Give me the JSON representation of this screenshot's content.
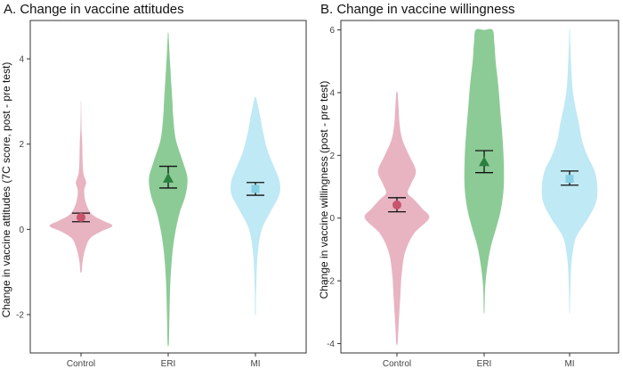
{
  "chart_data": [
    {
      "type": "violin",
      "title": "A. Change in vaccine attitudes",
      "xlabel": "",
      "ylabel": "Change in vaccine attitudes (7C score, post - pre test)",
      "ylim": [
        -2.9,
        4.9
      ],
      "yticks": [
        -2,
        0,
        2,
        4
      ],
      "grid": false,
      "legend": "none",
      "categories": [
        "Control",
        "ERI",
        "MI"
      ],
      "groups": [
        {
          "name": "Control",
          "color": "#e8b4c2",
          "marker": "circle",
          "marker_color": "#c8546e",
          "mean": 0.28,
          "ci": [
            0.18,
            0.38
          ],
          "range": [
            -1.0,
            3.0
          ],
          "density": [
            [
              -1.0,
              0.02
            ],
            [
              -0.7,
              0.06
            ],
            [
              -0.4,
              0.16
            ],
            [
              -0.2,
              0.3
            ],
            [
              -0.05,
              0.62
            ],
            [
              0.08,
              0.98
            ],
            [
              0.2,
              0.7
            ],
            [
              0.35,
              0.35
            ],
            [
              0.6,
              0.16
            ],
            [
              0.9,
              0.1
            ],
            [
              1.1,
              0.16
            ],
            [
              1.3,
              0.08
            ],
            [
              1.6,
              0.05
            ],
            [
              2.0,
              0.04
            ],
            [
              2.3,
              0.02
            ],
            [
              2.6,
              0.01
            ],
            [
              3.0,
              0.005
            ]
          ]
        },
        {
          "name": "ERI",
          "color": "#8ccb96",
          "marker": "triangle",
          "marker_color": "#2a8040",
          "mean": 1.2,
          "ci": [
            0.97,
            1.48
          ],
          "range": [
            -2.7,
            4.6
          ],
          "density": [
            [
              -2.7,
              0.02
            ],
            [
              -2.0,
              0.04
            ],
            [
              -1.2,
              0.07
            ],
            [
              -0.5,
              0.14
            ],
            [
              0.0,
              0.24
            ],
            [
              0.4,
              0.36
            ],
            [
              0.8,
              0.54
            ],
            [
              1.2,
              0.6
            ],
            [
              1.6,
              0.45
            ],
            [
              2.1,
              0.24
            ],
            [
              2.6,
              0.16
            ],
            [
              3.0,
              0.13
            ],
            [
              3.5,
              0.09
            ],
            [
              4.0,
              0.05
            ],
            [
              4.3,
              0.03
            ],
            [
              4.6,
              0.01
            ]
          ]
        },
        {
          "name": "MI",
          "color": "#bfe9f4",
          "marker": "square",
          "marker_color": "#86d0e4",
          "mean": 0.95,
          "ci": [
            0.8,
            1.1
          ],
          "range": [
            -2.0,
            3.1
          ],
          "density": [
            [
              -2.0,
              0.01
            ],
            [
              -1.5,
              0.02
            ],
            [
              -1.0,
              0.04
            ],
            [
              -0.5,
              0.08
            ],
            [
              0.0,
              0.2
            ],
            [
              0.4,
              0.46
            ],
            [
              0.8,
              0.74
            ],
            [
              1.1,
              0.76
            ],
            [
              1.4,
              0.62
            ],
            [
              1.8,
              0.4
            ],
            [
              2.2,
              0.26
            ],
            [
              2.6,
              0.16
            ],
            [
              2.9,
              0.08
            ],
            [
              3.1,
              0.02
            ]
          ]
        }
      ]
    },
    {
      "type": "violin",
      "title": "B. Change in vaccine willingness",
      "xlabel": "",
      "ylabel": "Change in vaccine willingness (post - pre test)",
      "ylim": [
        -4.3,
        6.3
      ],
      "yticks": [
        -4,
        -2,
        0,
        2,
        4,
        6
      ],
      "grid": false,
      "legend": "none",
      "categories": [
        "Control",
        "ERI",
        "MI"
      ],
      "groups": [
        {
          "name": "Control",
          "color": "#e8b4c2",
          "marker": "circle",
          "marker_color": "#c8546e",
          "mean": 0.42,
          "ci": [
            0.2,
            0.65
          ],
          "range": [
            -4.0,
            4.0
          ],
          "density": [
            [
              -4.0,
              0.02
            ],
            [
              -3.2,
              0.06
            ],
            [
              -2.5,
              0.1
            ],
            [
              -1.8,
              0.14
            ],
            [
              -1.1,
              0.24
            ],
            [
              -0.5,
              0.5
            ],
            [
              0.0,
              0.95
            ],
            [
              0.3,
              0.75
            ],
            [
              0.6,
              0.5
            ],
            [
              0.8,
              0.32
            ],
            [
              1.1,
              0.42
            ],
            [
              1.5,
              0.56
            ],
            [
              2.0,
              0.36
            ],
            [
              2.5,
              0.16
            ],
            [
              3.0,
              0.08
            ],
            [
              3.5,
              0.05
            ],
            [
              4.0,
              0.02
            ]
          ]
        },
        {
          "name": "ERI",
          "color": "#8ccb96",
          "marker": "triangle",
          "marker_color": "#2a8040",
          "mean": 1.8,
          "ci": [
            1.45,
            2.15
          ],
          "range": [
            -3.0,
            6.0
          ],
          "density": [
            [
              -3.0,
              0.01
            ],
            [
              -2.2,
              0.03
            ],
            [
              -1.5,
              0.1
            ],
            [
              -0.9,
              0.2
            ],
            [
              -0.3,
              0.36
            ],
            [
              0.3,
              0.5
            ],
            [
              1.0,
              0.58
            ],
            [
              1.8,
              0.58
            ],
            [
              2.6,
              0.54
            ],
            [
              3.4,
              0.48
            ],
            [
              4.2,
              0.42
            ],
            [
              5.0,
              0.34
            ],
            [
              5.6,
              0.3
            ],
            [
              6.0,
              0.25
            ]
          ]
        },
        {
          "name": "MI",
          "color": "#bfe9f4",
          "marker": "square",
          "marker_color": "#86d0e4",
          "mean": 1.25,
          "ci": [
            1.05,
            1.5
          ],
          "range": [
            -3.0,
            6.0
          ],
          "density": [
            [
              -3.0,
              0.01
            ],
            [
              -2.3,
              0.02
            ],
            [
              -1.7,
              0.04
            ],
            [
              -1.2,
              0.08
            ],
            [
              -0.6,
              0.2
            ],
            [
              0.0,
              0.55
            ],
            [
              0.5,
              0.78
            ],
            [
              1.0,
              0.82
            ],
            [
              1.5,
              0.74
            ],
            [
              2.0,
              0.52
            ],
            [
              2.5,
              0.36
            ],
            [
              3.0,
              0.28
            ],
            [
              3.5,
              0.18
            ],
            [
              4.0,
              0.1
            ],
            [
              4.5,
              0.06
            ],
            [
              5.0,
              0.04
            ],
            [
              5.5,
              0.02
            ],
            [
              6.0,
              0.01
            ]
          ]
        }
      ]
    }
  ]
}
